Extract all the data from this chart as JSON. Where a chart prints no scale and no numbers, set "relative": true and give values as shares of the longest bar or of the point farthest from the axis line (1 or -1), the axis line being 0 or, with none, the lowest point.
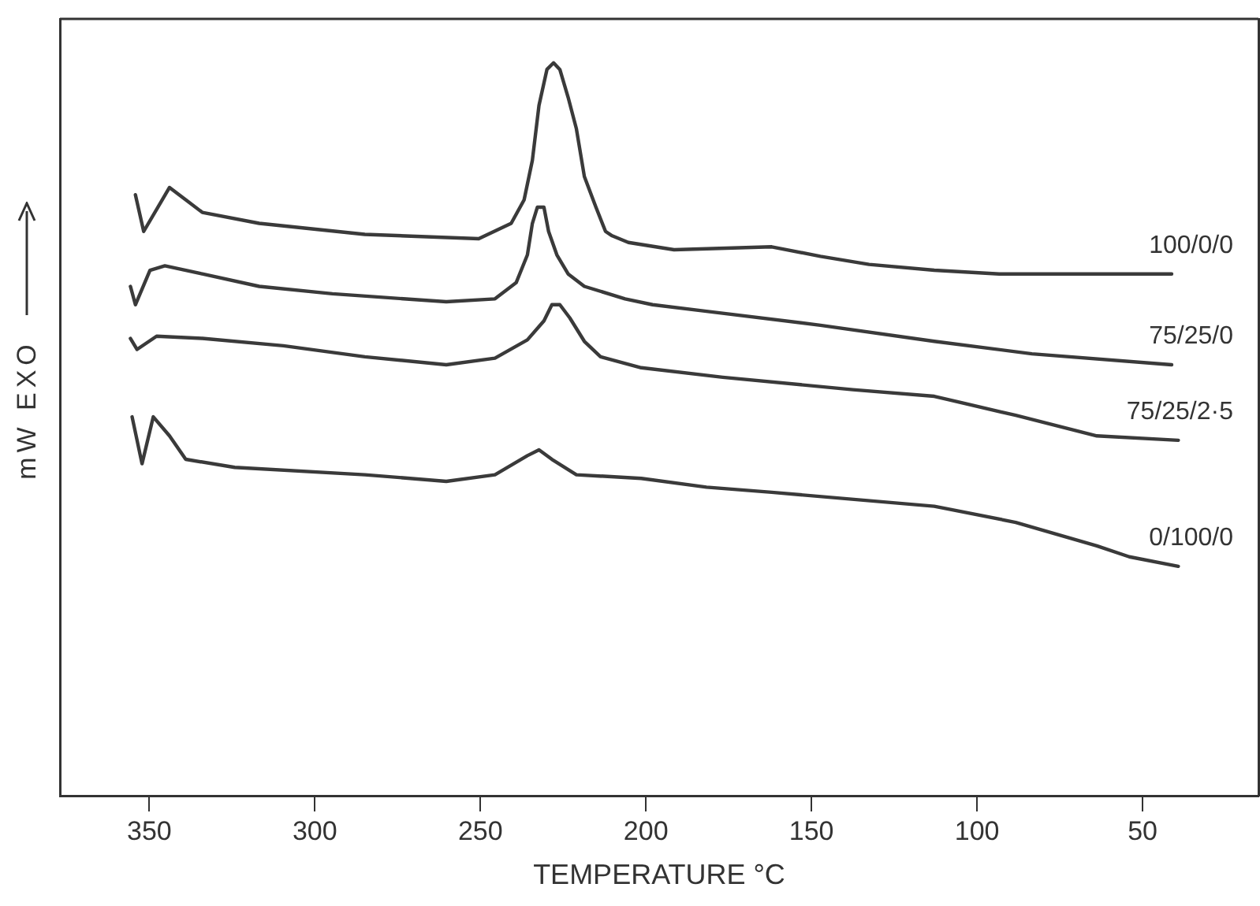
{
  "chart_data": {
    "type": "line",
    "relative": true,
    "xlabel": "TEMPERATURE °C",
    "ylabel": "mW EXO",
    "xlim": [
      377,
      15
    ],
    "xticks": [
      350,
      300,
      250,
      200,
      150,
      100,
      50
    ],
    "grid": false,
    "legend": false,
    "marker": "none",
    "line_style": "solid",
    "series": [
      {
        "name": "100/0/0",
        "color": "#3a3a3a",
        "x": [
          354.2,
          351.7,
          343.9,
          334,
          316.8,
          284.9,
          250.5,
          240.7,
          236.8,
          234.3,
          232.3,
          229.9,
          227.9,
          226,
          223.5,
          221,
          218.6,
          215.1,
          212.2,
          210.2,
          205.3,
          191.5,
          162,
          147.3,
          132.6,
          112.9,
          93.3,
          41.2
        ],
        "values": [
          0.82,
          0.77,
          0.83,
          0.796,
          0.781,
          0.766,
          0.76,
          0.781,
          0.813,
          0.867,
          0.942,
          0.991,
          1,
          0.991,
          0.953,
          0.91,
          0.845,
          0.803,
          0.77,
          0.764,
          0.755,
          0.745,
          0.749,
          0.736,
          0.725,
          0.717,
          0.712,
          0.712
        ]
      },
      {
        "name": "75/25/0",
        "color": "#3a3a3a",
        "x": [
          355.7,
          354.2,
          349.8,
          345.3,
          334,
          316.8,
          294.7,
          260.3,
          245.6,
          239.2,
          235.8,
          234.3,
          232.8,
          230.8,
          229.4,
          226.9,
          223.5,
          218.6,
          206.3,
          198,
          181.7,
          147.3,
          112.9,
          83.4,
          41.2
        ],
        "values": [
          0.695,
          0.67,
          0.717,
          0.723,
          0.712,
          0.695,
          0.685,
          0.674,
          0.678,
          0.7,
          0.738,
          0.781,
          0.803,
          0.803,
          0.77,
          0.738,
          0.712,
          0.695,
          0.678,
          0.67,
          0.661,
          0.642,
          0.62,
          0.603,
          0.588
        ]
      },
      {
        "name": "75/25/2·5",
        "color": "#3a3a3a",
        "x": [
          355.7,
          353.7,
          347.8,
          334,
          309.5,
          284.9,
          260.3,
          245.6,
          235.8,
          230.8,
          228.4,
          226,
          223,
          218.6,
          213.7,
          201.4,
          176.8,
          137.5,
          112.9,
          88.3,
          63.8,
          39.2
        ],
        "values": [
          0.624,
          0.609,
          0.627,
          0.624,
          0.614,
          0.599,
          0.588,
          0.597,
          0.622,
          0.648,
          0.67,
          0.67,
          0.652,
          0.62,
          0.599,
          0.584,
          0.571,
          0.554,
          0.545,
          0.519,
          0.491,
          0.485
        ]
      },
      {
        "name": "0/100/0",
        "color": "#3a3a3a",
        "x": [
          355.2,
          352.2,
          348.8,
          343.9,
          339,
          324.2,
          284.9,
          260.3,
          245.6,
          235.8,
          232.3,
          228.4,
          221,
          201.4,
          181.7,
          162,
          112.9,
          88.3,
          63.8,
          54,
          39.2
        ],
        "values": [
          0.517,
          0.453,
          0.517,
          0.491,
          0.459,
          0.448,
          0.438,
          0.429,
          0.438,
          0.464,
          0.472,
          0.459,
          0.438,
          0.433,
          0.421,
          0.414,
          0.395,
          0.373,
          0.341,
          0.326,
          0.313
        ]
      }
    ]
  }
}
